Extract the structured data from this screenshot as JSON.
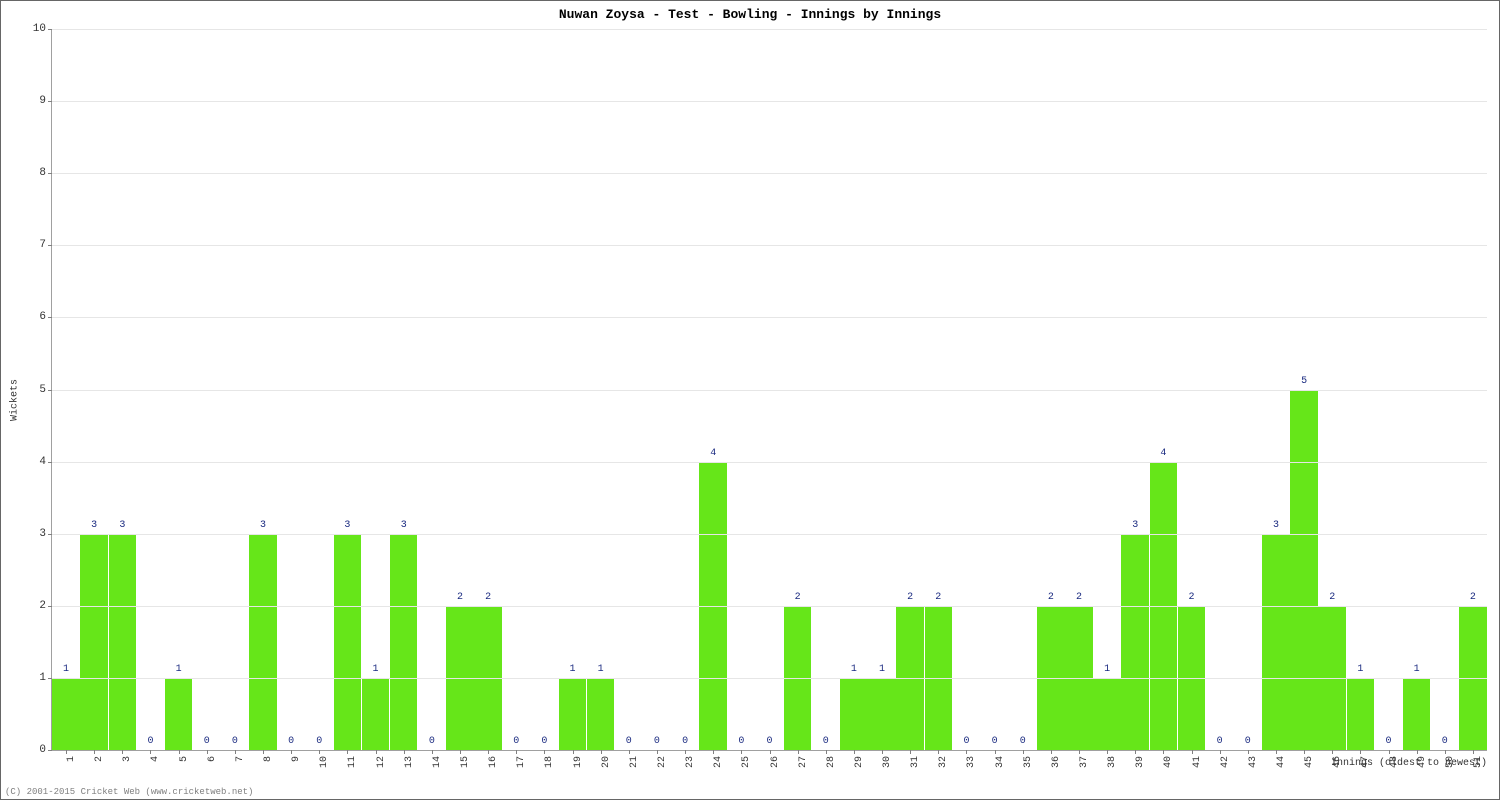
{
  "chart": {
    "type": "bar",
    "title": "Nuwan Zoysa - Test - Bowling - Innings by Innings",
    "ylabel": "Wickets",
    "xlabel": "Innings (oldest to newest)",
    "ylim": [
      0,
      10
    ],
    "ytick_step": 1,
    "xticks": [
      "1",
      "2",
      "3",
      "4",
      "5",
      "6",
      "7",
      "8",
      "9",
      "10",
      "11",
      "12",
      "13",
      "14",
      "15",
      "16",
      "17",
      "18",
      "19",
      "20",
      "21",
      "22",
      "23",
      "24",
      "25",
      "26",
      "27",
      "28",
      "29",
      "30",
      "31",
      "32",
      "33",
      "34",
      "35",
      "36",
      "37",
      "38",
      "39",
      "40",
      "41",
      "42",
      "43",
      "44",
      "45",
      "46",
      "47",
      "48",
      "49",
      "50",
      "51"
    ],
    "values": [
      1,
      3,
      3,
      0,
      1,
      0,
      0,
      3,
      0,
      0,
      3,
      1,
      3,
      0,
      2,
      2,
      0,
      0,
      1,
      1,
      0,
      0,
      0,
      4,
      0,
      0,
      2,
      0,
      1,
      1,
      2,
      2,
      0,
      0,
      0,
      2,
      2,
      1,
      3,
      4,
      2,
      0,
      0,
      3,
      5,
      2,
      1,
      0,
      1,
      0,
      2
    ],
    "bar_color": "#66e619",
    "value_label_color": "#1a2a80",
    "background_color": "#ffffff",
    "grid_color": "#e6e6e6",
    "axis_color": "#a0a0a0",
    "tick_color": "#808080",
    "title_fontsize": 13,
    "label_fontsize": 10,
    "tick_fontsize": 10,
    "bar_width_ratio": 0.98
  },
  "copyright": "(C) 2001-2015 Cricket Web (www.cricketweb.net)"
}
